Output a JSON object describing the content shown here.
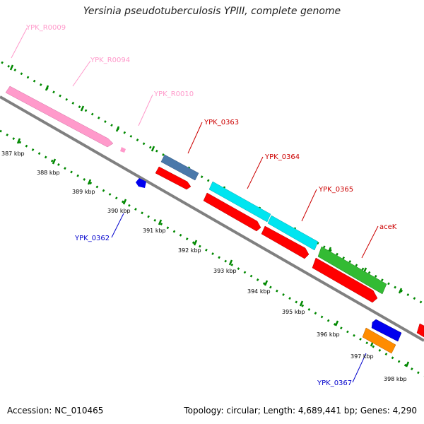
{
  "title": "Yersinia pseudotuberculosis YPIII, complete genome",
  "footer": {
    "accession": "Accession: NC_010465",
    "summary": "Topology: circular; Length: 4,689,441 bp; Genes: 4,290"
  },
  "ticks": [
    "387 kbp",
    "388 kbp",
    "389 kbp",
    "390 kbp",
    "391 kbp",
    "392 kbp",
    "393 kbp",
    "394 kbp",
    "395 kbp",
    "396 kbp",
    "397 kbp",
    "398 kbp"
  ],
  "labels": {
    "ypk_r0009": "YPK_R0009",
    "ypk_r0094": "YPK_R0094",
    "ypk_r0010": "YPK_R0010",
    "ypk_0363": "YPK_0363",
    "ypk_0364": "YPK_0364",
    "ypk_0365": "YPK_0365",
    "acek": "aceK",
    "ypk_0362": "YPK_0362",
    "ypk_0367": "YPK_0367"
  },
  "colors": {
    "rna": "#ff9acb",
    "cds_label": "#cc0000",
    "rev_label": "#0000cc",
    "cds": "#ff0000",
    "steel": "#4a78aa",
    "cyan": "#00e5f0",
    "green": "#33bb33",
    "blue": "#0000ee",
    "orange": "#ff8c00",
    "backbone": "#808080",
    "dots": "#008800"
  }
}
